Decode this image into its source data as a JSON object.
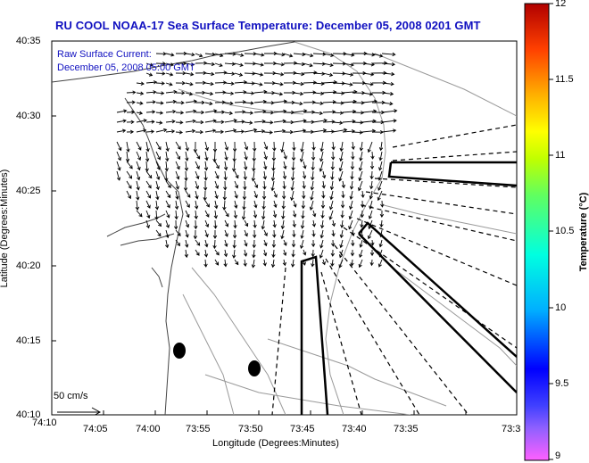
{
  "title": "RU COOL  NOAA-17  Sea Surface Temperature:  December 05, 2008 0201 GMT",
  "legend": {
    "line1": "Raw Surface Current:",
    "line2": "December 05, 2008 05:00 GMT"
  },
  "axes": {
    "xlabel": "Longitude (Degrees:Minutes)",
    "ylabel": "Latitude (Degrees:Minutes)",
    "xticks": [
      "74:10",
      "74:05",
      "74:00",
      "73:55",
      "73:50",
      "73:45",
      "73:40",
      "73:35",
      "73:3"
    ],
    "yticks": [
      "40:35",
      "40:30",
      "40:25",
      "40:20",
      "40:15",
      "40:10"
    ]
  },
  "scale": {
    "label": "50 cm/s"
  },
  "colorbar": {
    "label": "Temperature (°C)",
    "min": 9,
    "max": 12,
    "ticks": [
      "12",
      "11.5",
      "11",
      "10.5",
      "10",
      "9.5",
      "9"
    ]
  },
  "colors": {
    "title": "#1010c0",
    "axis": "#000000"
  }
}
